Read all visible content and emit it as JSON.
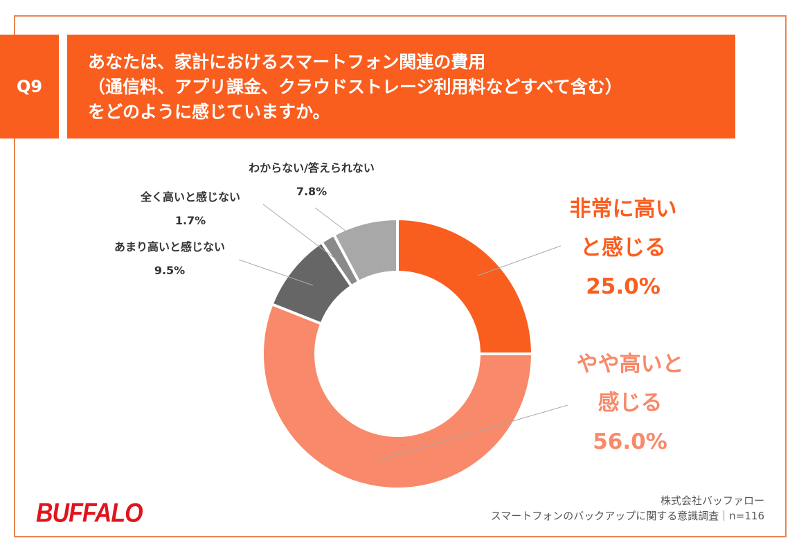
{
  "question": {
    "number": "Q9",
    "lines": [
      "あなたは、家計におけるスマートフォン関連の費用",
      "（通信料、アプリ課金、クラウドストレージ利用料などすべて含む）",
      "をどのように感じていますか。"
    ]
  },
  "chart_data": {
    "type": "pie",
    "donut": true,
    "start": "12 o'clock, clockwise",
    "slices": [
      {
        "label_lines": [
          "非常に高い",
          "と感じる"
        ],
        "value": 25.0,
        "value_label": "25.0%",
        "color": "#f95e1f"
      },
      {
        "label_lines": [
          "やや高いと",
          "感じる"
        ],
        "value": 56.0,
        "value_label": "56.0%",
        "color": "#f8896a"
      },
      {
        "label_lines": [
          "あまり高いと感じない"
        ],
        "value": 9.5,
        "value_label": "9.5%",
        "color": "#666666"
      },
      {
        "label_lines": [
          "全く高いと感じない"
        ],
        "value": 1.7,
        "value_label": "1.7%",
        "color": "#8a8a8a"
      },
      {
        "label_lines": [
          "わからない/答えられない"
        ],
        "value": 7.8,
        "value_label": "7.8%",
        "color": "#a8a8a8"
      }
    ]
  },
  "footer": {
    "logo": "BUFFALO",
    "company": "株式会社バッファロー",
    "survey": "スマートフォンのバックアップに関する意識調査｜n=116"
  }
}
